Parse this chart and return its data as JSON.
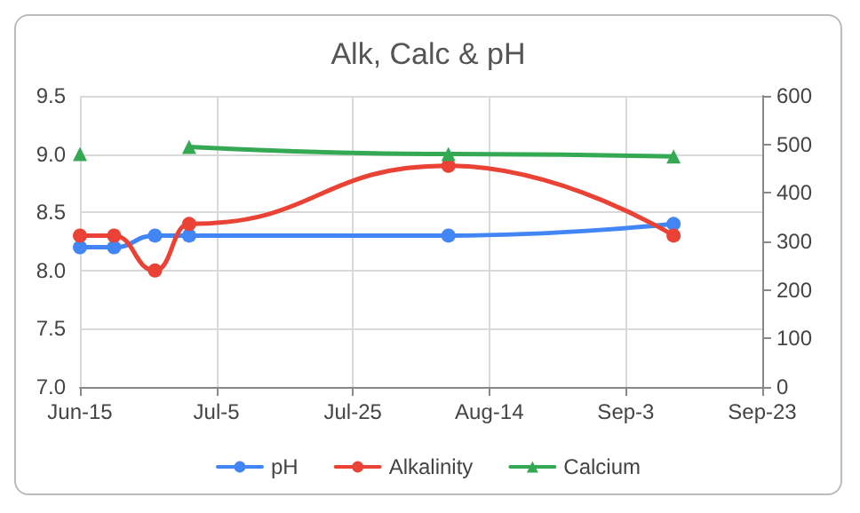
{
  "chart_data": {
    "type": "line",
    "title": "Alk, Calc & pH",
    "x": [
      "--06-15",
      "--06-20",
      "--06-26",
      "--07-01",
      "--08-08",
      "--09-10"
    ],
    "series": [
      {
        "name": "pH",
        "color": "#4285f4",
        "marker": "circle",
        "values": [
          8.2,
          8.2,
          8.3,
          8.3,
          8.3,
          8.4
        ]
      },
      {
        "name": "Alkalinity",
        "color": "#ea4335",
        "marker": "circle",
        "values": [
          8.3,
          8.3,
          8.0,
          8.4,
          8.9,
          8.3
        ]
      },
      {
        "name": "Calcium",
        "color": "#34a853",
        "marker": "triangle",
        "axis": "y2",
        "values": [
          480,
          null,
          null,
          495,
          480,
          475
        ]
      }
    ],
    "xlim": [
      "--06-15",
      "--09-23"
    ],
    "xticks": [
      {
        "value": "--06-15",
        "label": "Jun-15"
      },
      {
        "value": "--07-05",
        "label": "Jul-5"
      },
      {
        "value": "--07-25",
        "label": "Jul-25"
      },
      {
        "value": "--08-14",
        "label": "Aug-14"
      },
      {
        "value": "--09-03",
        "label": "Sep-3"
      },
      {
        "value": "--09-23",
        "label": "Sep-23"
      }
    ],
    "ylim": [
      7.0,
      9.5
    ],
    "yticks": [
      {
        "value": 7,
        "label": "7.0"
      },
      {
        "value": 7.5,
        "label": "7.5"
      },
      {
        "value": 8,
        "label": "8.0"
      },
      {
        "value": 8.5,
        "label": "8.5"
      },
      {
        "value": 9,
        "label": "9.0"
      },
      {
        "value": 9.5,
        "label": "9.5"
      }
    ],
    "y2lim": [
      0,
      600
    ],
    "y2ticks": [
      0,
      100,
      200,
      300,
      400,
      500,
      600
    ],
    "grid": true,
    "legend": "bottom"
  }
}
